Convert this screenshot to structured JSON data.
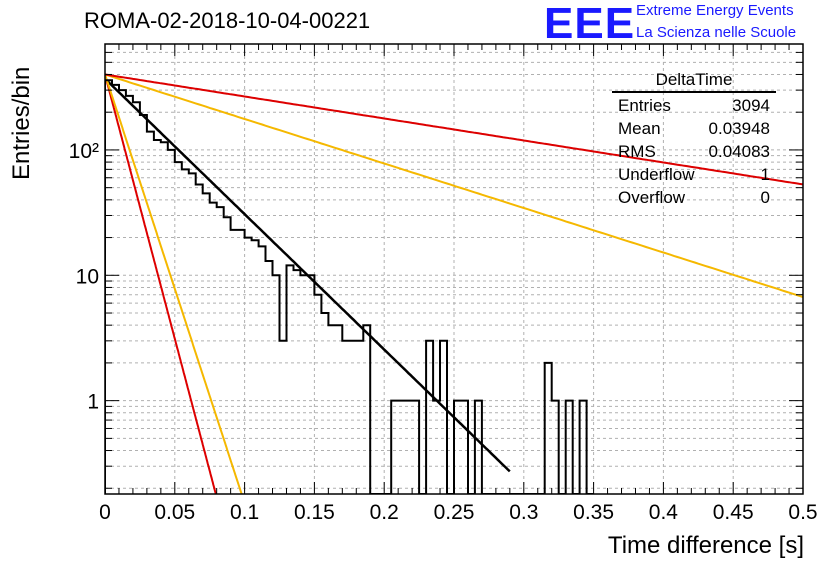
{
  "header": {
    "title": "ROMA-02-2018-10-04-00221",
    "logo_text": "EEE",
    "logo_line1": "Extreme Energy Events",
    "logo_line2": "La Scienza nelle Scuole"
  },
  "stats_box": {
    "title": "DeltaTime",
    "rows": [
      {
        "label": "Entries",
        "value": "3094"
      },
      {
        "label": "Mean",
        "value": "0.03948"
      },
      {
        "label": "RMS",
        "value": "0.04083"
      },
      {
        "label": "Underflow",
        "value": "1"
      },
      {
        "label": "Overflow",
        "value": "0"
      }
    ]
  },
  "colors": {
    "histogram": "#000000",
    "fit": "#000000",
    "red_line": "#dd0000",
    "orange_line": "#f5b800",
    "grid": "#b0b0b0"
  },
  "chart_data": {
    "type": "histogram",
    "title": "ROMA-02-2018-10-04-00221",
    "xlabel": "Time difference [s]",
    "ylabel": "Entries/bin",
    "xlim": [
      0,
      0.5
    ],
    "ylim": [
      0.18,
      700
    ],
    "yscale": "log",
    "grid": true,
    "x_ticks": [
      "0",
      "0.05",
      "0.1",
      "0.15",
      "0.2",
      "0.25",
      "0.3",
      "0.35",
      "0.4",
      "0.45",
      "0.5"
    ],
    "x_tick_values": [
      0,
      0.05,
      0.1,
      0.15,
      0.2,
      0.25,
      0.3,
      0.35,
      0.4,
      0.45,
      0.5
    ],
    "y_ticks": [
      "1",
      "10",
      "10²"
    ],
    "y_tick_values": [
      1,
      10,
      100
    ],
    "bin_width": 0.005,
    "bin_start": 0,
    "histogram_counts": [
      360,
      330,
      300,
      270,
      240,
      190,
      140,
      120,
      115,
      100,
      80,
      70,
      65,
      53,
      45,
      38,
      35,
      29,
      23,
      23,
      20,
      19,
      17,
      13,
      10,
      3,
      12,
      11,
      10,
      10,
      7,
      5,
      4,
      4,
      3,
      3,
      3,
      4,
      0,
      0,
      0,
      1,
      1,
      1,
      1,
      0,
      3,
      1,
      3,
      0,
      1,
      1,
      0,
      1,
      0,
      0,
      0,
      0,
      0,
      0,
      0,
      0,
      0,
      2,
      1,
      0,
      1,
      0,
      1,
      0
    ],
    "curves": [
      {
        "name": "fit",
        "color": "#000000",
        "A": 370,
        "tau": 0.0402,
        "x_end": 0.29
      },
      {
        "name": "red-steep",
        "color": "#dd0000",
        "A": 400,
        "tau": 0.0103,
        "x_end": 0.08
      },
      {
        "name": "orange-steep",
        "color": "#f5b800",
        "A": 400,
        "tau": 0.0127,
        "x_end": 0.1
      },
      {
        "name": "orange-shallow",
        "color": "#f5b800",
        "A": 400,
        "tau": 0.1223,
        "x_end": 0.5
      },
      {
        "name": "red-shallow",
        "color": "#dd0000",
        "A": 400,
        "tau": 0.2475,
        "x_end": 0.5
      }
    ]
  }
}
